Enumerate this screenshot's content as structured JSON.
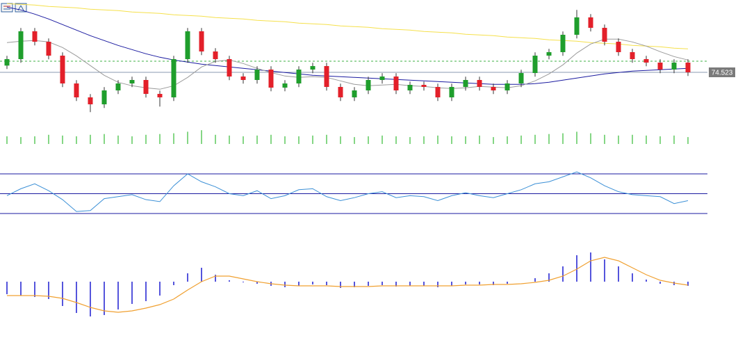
{
  "chart_data": [
    {
      "type": "candlestick",
      "open": [
        74.62,
        74.713,
        75.113,
        74.963,
        74.763,
        74.363,
        74.163,
        74.063,
        74.263,
        74.363,
        74.413,
        74.213,
        74.163,
        74.713,
        75.113,
        74.823,
        74.713,
        74.463,
        74.413,
        74.563,
        74.303,
        74.363,
        74.563,
        74.613,
        74.313,
        74.163,
        74.263,
        74.413,
        74.463,
        74.263,
        74.343,
        74.313,
        74.163,
        74.313,
        74.413,
        74.313,
        74.263,
        74.363,
        74.513,
        74.763,
        74.813,
        75.063,
        75.313,
        75.163,
        74.963,
        74.813,
        74.713,
        74.663,
        74.563,
        74.663
      ],
      "high": [
        74.76,
        75.16,
        75.16,
        75.01,
        74.81,
        74.41,
        74.21,
        74.31,
        74.41,
        74.46,
        74.46,
        74.26,
        74.76,
        75.16,
        75.16,
        74.87,
        74.76,
        74.51,
        74.61,
        74.61,
        74.41,
        74.61,
        74.66,
        74.66,
        74.36,
        74.31,
        74.46,
        74.51,
        74.51,
        74.39,
        74.39,
        74.36,
        74.36,
        74.46,
        74.46,
        74.36,
        74.41,
        74.56,
        74.81,
        74.86,
        75.11,
        75.42,
        75.36,
        75.21,
        75.01,
        74.86,
        74.76,
        74.71,
        74.71,
        74.71
      ],
      "low": [
        74.57,
        74.66,
        74.91,
        74.71,
        74.31,
        74.11,
        73.95,
        74.01,
        74.21,
        74.31,
        74.16,
        74.03,
        74.11,
        74.66,
        74.77,
        74.66,
        74.41,
        74.36,
        74.36,
        74.25,
        74.25,
        74.31,
        74.51,
        74.26,
        74.11,
        74.11,
        74.21,
        74.36,
        74.21,
        74.21,
        74.26,
        74.11,
        74.11,
        74.26,
        74.26,
        74.21,
        74.21,
        74.31,
        74.46,
        74.71,
        74.76,
        75.01,
        75.11,
        74.91,
        74.76,
        74.66,
        74.61,
        74.51,
        74.51,
        74.47
      ],
      "close": [
        74.713,
        75.113,
        74.963,
        74.763,
        74.363,
        74.163,
        74.063,
        74.263,
        74.363,
        74.413,
        74.213,
        74.163,
        74.713,
        75.113,
        74.823,
        74.713,
        74.463,
        74.413,
        74.563,
        74.303,
        74.363,
        74.563,
        74.613,
        74.313,
        74.163,
        74.263,
        74.413,
        74.463,
        74.263,
        74.343,
        74.313,
        74.163,
        74.313,
        74.413,
        74.313,
        74.263,
        74.363,
        74.513,
        74.763,
        74.813,
        75.063,
        75.313,
        75.163,
        74.963,
        74.813,
        74.713,
        74.663,
        74.563,
        74.663,
        74.523
      ],
      "up_color": "#1f9e2c",
      "down_color": "#e3202a",
      "ylim": [
        73.763,
        75.563
      ],
      "series": [
        {
          "color": "#f5e04a",
          "values": [
            75.51,
            75.5,
            75.49,
            75.47,
            75.46,
            75.45,
            75.43,
            75.42,
            75.41,
            75.39,
            75.38,
            75.37,
            75.35,
            75.34,
            75.33,
            75.31,
            75.3,
            75.29,
            75.27,
            75.26,
            75.25,
            75.23,
            75.22,
            75.21,
            75.19,
            75.18,
            75.17,
            75.15,
            75.14,
            75.13,
            75.11,
            75.1,
            75.09,
            75.07,
            75.06,
            75.05,
            75.03,
            75.02,
            75.01,
            74.99,
            74.98,
            74.97,
            74.95,
            74.94,
            74.93,
            74.91,
            74.9,
            74.89,
            74.87,
            74.86
          ]
        },
        {
          "color": "#1a1aa0",
          "values": [
            75.46,
            75.42,
            75.36,
            75.29,
            75.21,
            75.13,
            75.05,
            74.98,
            74.91,
            74.85,
            74.79,
            74.74,
            74.7,
            74.67,
            74.64,
            74.62,
            74.6,
            74.58,
            74.56,
            74.54,
            74.52,
            74.5,
            74.48,
            74.47,
            74.46,
            74.45,
            74.44,
            74.43,
            74.42,
            74.41,
            74.4,
            74.39,
            74.38,
            74.37,
            74.36,
            74.35,
            74.35,
            74.35,
            74.36,
            74.38,
            74.41,
            74.44,
            74.47,
            74.5,
            74.52,
            74.54,
            74.55,
            74.56,
            74.57,
            74.58
          ]
        },
        {
          "color": "#9a9a9a",
          "values": [
            74.95,
            74.97,
            74.98,
            74.96,
            74.88,
            74.76,
            74.62,
            74.48,
            74.38,
            74.33,
            74.3,
            74.28,
            74.33,
            74.45,
            74.6,
            74.68,
            74.7,
            74.65,
            74.58,
            74.52,
            74.47,
            74.45,
            74.46,
            74.45,
            74.4,
            74.35,
            74.33,
            74.34,
            74.35,
            74.33,
            74.32,
            74.3,
            74.29,
            74.3,
            74.32,
            74.31,
            74.3,
            74.33,
            74.4,
            74.5,
            74.63,
            74.8,
            74.93,
            75.0,
            75.0,
            74.96,
            74.9,
            74.82,
            74.75,
            74.7
          ]
        }
      ],
      "last_price": 74.523,
      "last_price_color": "#8a9ab0",
      "level": 74.683,
      "level_color": "#3cb043"
    },
    {
      "type": "bar",
      "values": [
        10,
        9,
        10,
        12,
        11,
        10,
        12,
        13,
        11,
        10,
        12,
        13,
        14,
        16,
        18,
        12,
        11,
        10,
        11,
        12,
        10,
        10,
        11,
        12,
        10,
        9,
        10,
        11,
        10,
        9,
        10,
        11,
        10,
        10,
        11,
        9,
        10,
        11,
        12,
        13,
        14,
        16,
        14,
        12,
        11,
        12,
        11,
        10,
        11,
        9
      ],
      "color": "#5cc95c",
      "ylim": [
        0,
        20
      ]
    },
    {
      "type": "line",
      "values": [
        48,
        55,
        60,
        53,
        44,
        32,
        33,
        45,
        47,
        49,
        44,
        42,
        58,
        70,
        62,
        57,
        50,
        48,
        53,
        45,
        48,
        54,
        55,
        47,
        43,
        46,
        50,
        52,
        46,
        48,
        47,
        43,
        48,
        51,
        48,
        46,
        50,
        54,
        60,
        62,
        67,
        72,
        66,
        58,
        52,
        49,
        48,
        47,
        40,
        43
      ],
      "color": "#3a8fd6",
      "ylim": [
        30,
        70
      ],
      "levels": [
        30,
        50,
        70
      ],
      "level_color": "#1a1aa0"
    },
    {
      "type": "macd",
      "values": [
        -0.18,
        -0.2,
        -0.22,
        -0.25,
        -0.35,
        -0.45,
        -0.5,
        -0.48,
        -0.4,
        -0.32,
        -0.28,
        -0.2,
        -0.05,
        0.12,
        0.2,
        0.1,
        0.02,
        -0.01,
        -0.03,
        -0.06,
        -0.08,
        -0.06,
        -0.04,
        -0.05,
        -0.09,
        -0.08,
        -0.06,
        -0.05,
        -0.07,
        -0.06,
        -0.06,
        -0.08,
        -0.06,
        -0.04,
        -0.04,
        -0.05,
        -0.03,
        0.0,
        0.05,
        0.12,
        0.22,
        0.38,
        0.42,
        0.32,
        0.22,
        0.12,
        0.03,
        -0.03,
        -0.05,
        -0.06
      ],
      "signal": [
        -0.2,
        -0.2,
        -0.2,
        -0.21,
        -0.24,
        -0.3,
        -0.37,
        -0.42,
        -0.44,
        -0.42,
        -0.38,
        -0.33,
        -0.25,
        -0.12,
        0.0,
        0.08,
        0.08,
        0.04,
        0.0,
        -0.03,
        -0.05,
        -0.06,
        -0.06,
        -0.06,
        -0.07,
        -0.07,
        -0.07,
        -0.06,
        -0.06,
        -0.06,
        -0.06,
        -0.06,
        -0.06,
        -0.05,
        -0.05,
        -0.04,
        -0.04,
        -0.03,
        -0.01,
        0.02,
        0.08,
        0.18,
        0.3,
        0.35,
        0.3,
        0.2,
        0.1,
        0.02,
        -0.02,
        -0.05
      ],
      "color": "#1a1ad0",
      "signal_color": "#f0a030",
      "ylim": [
        -0.6,
        0.6
      ]
    }
  ]
}
